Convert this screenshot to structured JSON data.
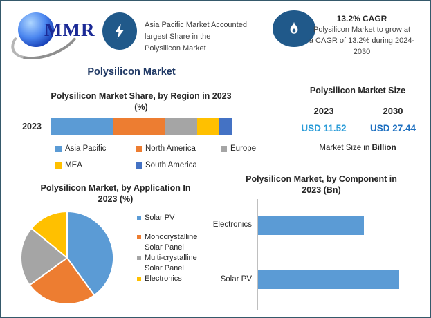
{
  "header": {
    "logo_text": "MMR",
    "feature1_lines": [
      "Asia Pacific Market Accounted",
      "largest Share in the",
      "Polysilicon Market"
    ],
    "feature2_title": "13.2% CAGR",
    "feature2_lines": [
      "Polysilicon Market to grow at",
      "a CAGR of 13.2% during 2024-",
      "2030"
    ],
    "main_title": "Polysilicon Market"
  },
  "market_size": {
    "title": "Polysilicon Market Size",
    "columns": [
      {
        "year": "2023",
        "value": "USD 11.52"
      },
      {
        "year": "2030",
        "value": "USD 27.44"
      }
    ],
    "caption_prefix": "Market Size in ",
    "caption_bold": "Billion"
  },
  "colors": {
    "accent_navy": "#1F3864",
    "icon_circle": "#20598A",
    "usd_2023": "#2B9CD8",
    "usd_2030": "#1D6FC0",
    "border": "#35596B",
    "axis_gray": "#BFBFBF"
  },
  "chart_data": [
    {
      "type": "bar",
      "subtype": "stacked-horizontal",
      "title": "Polysilicon Market Share, by Region in 2023 (%)",
      "title_lines": [
        "Polysilicon Market Share, by Region in 2023",
        "(%)"
      ],
      "categories": [
        "2023"
      ],
      "series": [
        {
          "name": "Asia Pacific",
          "values": [
            34
          ],
          "color": "#5B9BD5"
        },
        {
          "name": "North America",
          "values": [
            29
          ],
          "color": "#ED7D31"
        },
        {
          "name": "Europe",
          "values": [
            18
          ],
          "color": "#A5A5A5"
        },
        {
          "name": "MEA",
          "values": [
            12
          ],
          "color": "#FFC000"
        },
        {
          "name": "South America",
          "values": [
            7
          ],
          "color": "#4472C4"
        }
      ],
      "unit": "%",
      "legend_position": "bottom",
      "note": "segment percentages estimated from bar proportions; no data labels shown"
    },
    {
      "type": "pie",
      "title": "Polysilicon Market, by Application In 2023 (%)",
      "title_lines": [
        "Polysilicon Market, by Application In",
        "2023 (%)"
      ],
      "labels": [
        "Solar PV",
        "Monocrystalline Solar Panel",
        "Multi-crystalline Solar Panel",
        "Electronics"
      ],
      "values": [
        40,
        25,
        21,
        14
      ],
      "colors": [
        "#5B9BD5",
        "#ED7D31",
        "#A5A5A5",
        "#FFC000"
      ],
      "legend_position": "right",
      "start_angle_deg": 0,
      "note": "slice percentages estimated from pie angles; no data labels shown"
    },
    {
      "type": "bar",
      "subtype": "horizontal",
      "title": "Polysilicon Market, by Component in 2023 (Bn)",
      "title_lines": [
        "Polysilicon Market, by Component in",
        "2023 (Bn)"
      ],
      "categories": [
        "Electronics",
        "Solar PV"
      ],
      "values": [
        4.5,
        6.0
      ],
      "color": "#5B9BD5",
      "unit": "Bn",
      "note": "value axis unlabeled; values estimated from relative bar lengths (ratio ≈ 0.75)"
    }
  ]
}
